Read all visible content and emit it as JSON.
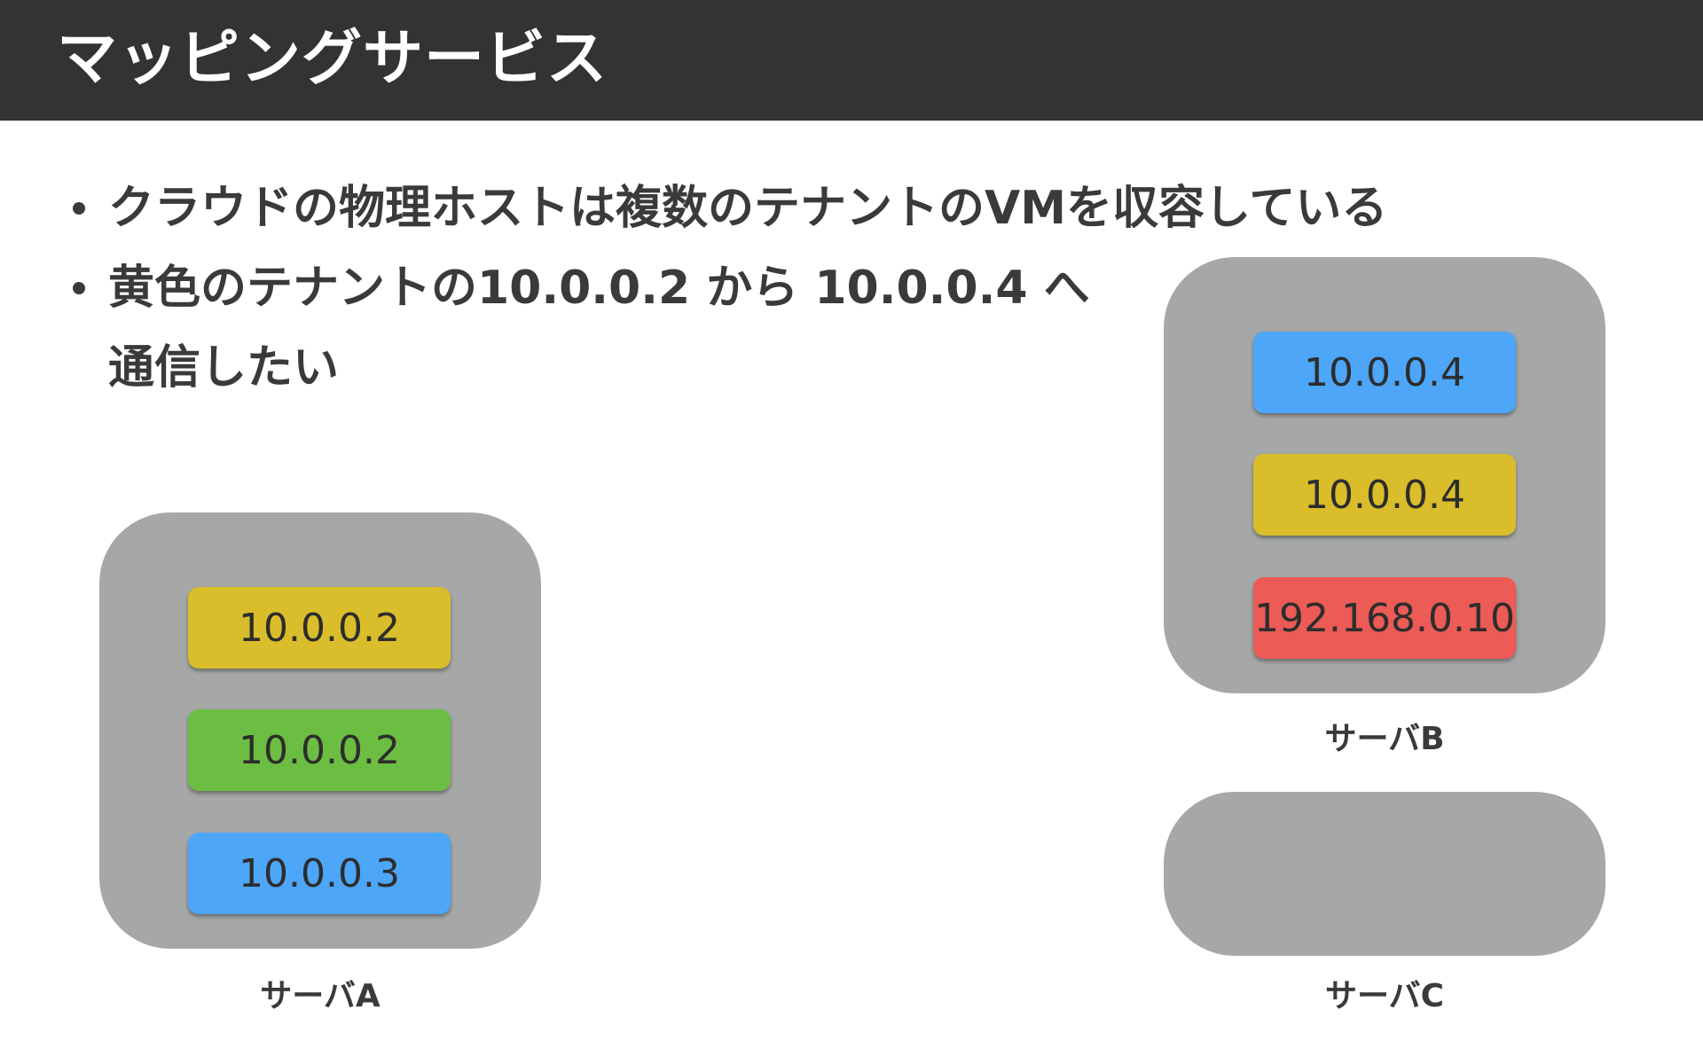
{
  "slide": {
    "title": "マッピングサービス",
    "bullets": [
      {
        "lines": [
          "クラウドの物理ホストは複数のテナントのVMを収容している"
        ]
      },
      {
        "lines": [
          "黄色のテナントの10.0.0.2 から 10.0.0.4 へ",
          "通信したい"
        ]
      }
    ]
  },
  "servers": {
    "a": {
      "label": "サーバA",
      "vms": [
        {
          "ip": "10.0.0.2",
          "color": "#d9bd2a"
        },
        {
          "ip": "10.0.0.2",
          "color": "#6cbe42"
        },
        {
          "ip": "10.0.0.3",
          "color": "#4da6f8"
        }
      ]
    },
    "b": {
      "label": "サーバB",
      "vms": [
        {
          "ip": "10.0.0.4",
          "color": "#4da6f8"
        },
        {
          "ip": "10.0.0.4",
          "color": "#d9bd2a"
        },
        {
          "ip": "192.168.0.10",
          "color": "#ec5b55"
        }
      ]
    },
    "c": {
      "label": "サーバC",
      "vms": []
    }
  },
  "colors": {
    "header": "#333333",
    "server": "#a5a8a7",
    "yellow_tenant": "#d9bd2a",
    "green_tenant": "#6cbe42",
    "blue_tenant": "#4da6f8",
    "red_tenant": "#ec5b55"
  }
}
